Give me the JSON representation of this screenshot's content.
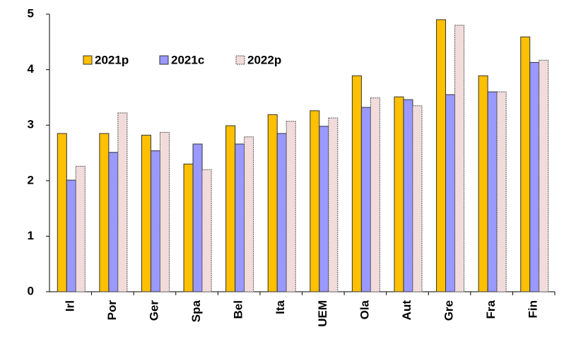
{
  "chart_data": {
    "type": "bar",
    "categories": [
      "Irl",
      "Por",
      "Ger",
      "Spa",
      "Bel",
      "Ita",
      "UEM",
      "Ola",
      "Aut",
      "Gre",
      "Fra",
      "Fin"
    ],
    "series": [
      {
        "name": "2021p",
        "color": "#FFC000",
        "values": [
          2.85,
          2.85,
          2.82,
          2.3,
          2.99,
          3.19,
          3.26,
          3.89,
          3.51,
          4.9,
          3.89,
          4.59
        ]
      },
      {
        "name": "2021c",
        "color": "#9999FF",
        "values": [
          2.01,
          2.51,
          2.54,
          2.66,
          2.66,
          2.85,
          2.98,
          3.32,
          3.46,
          3.55,
          3.6,
          4.13
        ]
      },
      {
        "name": "2022p",
        "color": "#F2DCDB",
        "values": [
          2.26,
          3.22,
          2.87,
          2.2,
          2.79,
          3.07,
          3.13,
          3.49,
          3.35,
          4.8,
          3.6,
          4.17
        ]
      }
    ],
    "ylim": [
      0,
      5
    ],
    "yticks": [
      0,
      1,
      2,
      3,
      4,
      5
    ],
    "legend": "upper-left"
  }
}
